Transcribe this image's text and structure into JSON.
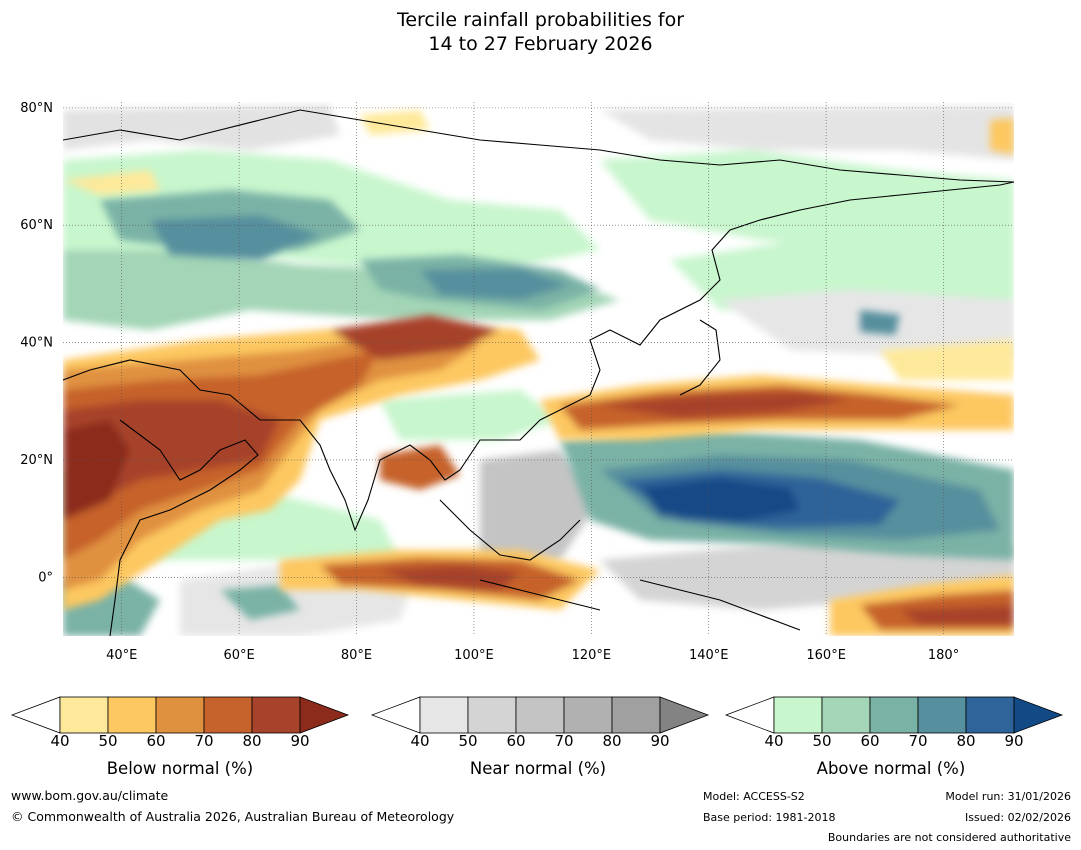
{
  "title": {
    "line1": "Tercile rainfall probabilities for",
    "line2": "14 to 27 February 2026"
  },
  "map": {
    "lat_labels": [
      "80°N",
      "60°N",
      "40°N",
      "20°N",
      "0°"
    ],
    "lon_labels": [
      "40°E",
      "60°E",
      "80°E",
      "100°E",
      "120°E",
      "140°E",
      "160°E",
      "180°"
    ],
    "extent": {
      "lon": [
        30,
        192
      ],
      "lat": [
        -10,
        81
      ]
    },
    "grid": true
  },
  "colorbars": [
    {
      "name": "below",
      "label": "Below normal (%)",
      "ticks": [
        "40",
        "50",
        "60",
        "70",
        "80",
        "90"
      ],
      "colors": [
        "#ffffff",
        "#fee99a",
        "#fdc861",
        "#e0913f",
        "#c6622c",
        "#a7432a",
        "#8c2a1b"
      ]
    },
    {
      "name": "near",
      "label": "Near normal (%)",
      "ticks": [
        "40",
        "50",
        "60",
        "70",
        "80",
        "90"
      ],
      "colors": [
        "#ffffff",
        "#e6e6e6",
        "#d4d4d4",
        "#c4c4c4",
        "#b1b1b1",
        "#a0a0a0",
        "#838383"
      ]
    },
    {
      "name": "above",
      "label": "Above normal (%)",
      "ticks": [
        "40",
        "50",
        "60",
        "70",
        "80",
        "90"
      ],
      "colors": [
        "#ffffff",
        "#c8f6cd",
        "#a3d5b6",
        "#7ab2a6",
        "#568f9e",
        "#2e6499",
        "#124a86"
      ]
    }
  ],
  "footer": {
    "website": "www.bom.gov.au/climate",
    "copyright": "© Commonwealth of Australia 2026, Australian Bureau of Meteorology",
    "model": "Model: ACCESS-S2",
    "base_period": "Base period: 1981-2018",
    "model_run": "Model run: 31/01/2026",
    "issued": "Issued: 02/02/2026",
    "disclaimer": "Boundaries are not considered authoritative"
  }
}
